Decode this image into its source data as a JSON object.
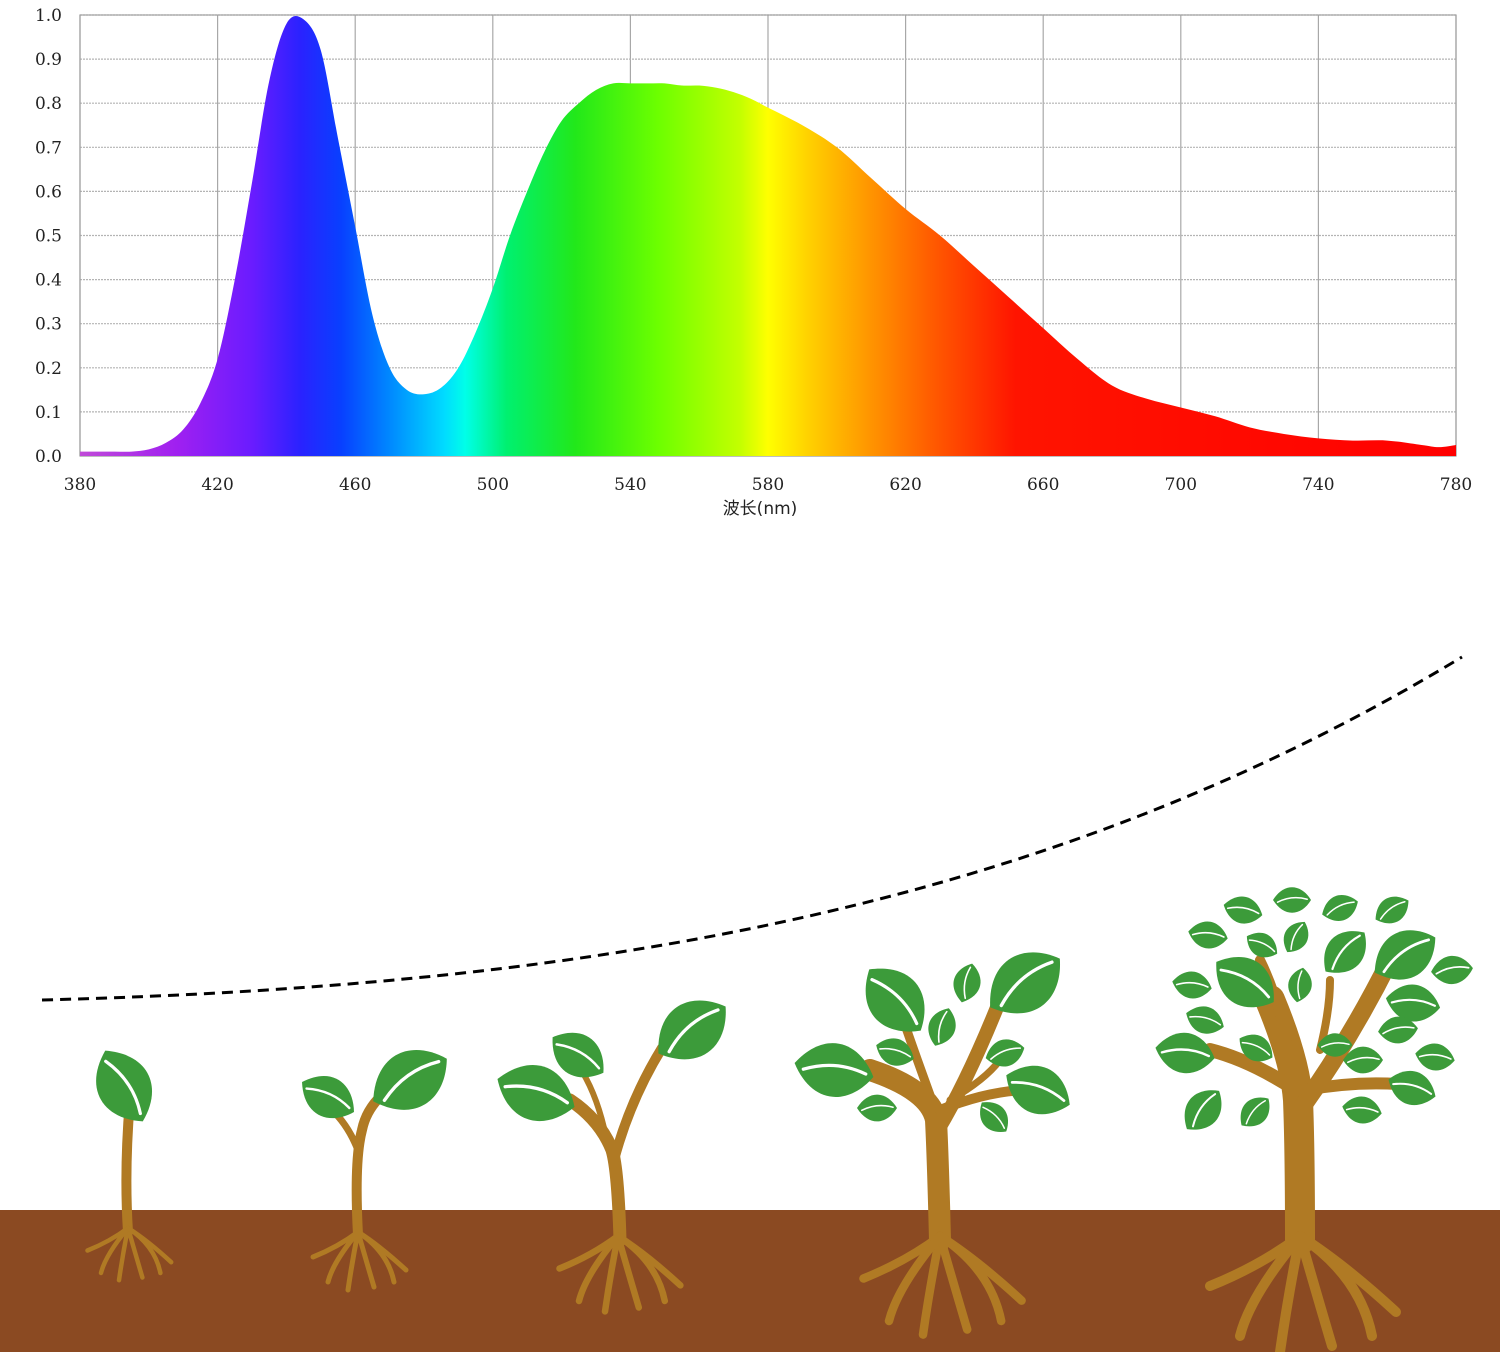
{
  "chart_data": {
    "type": "area",
    "title": "",
    "xlabel": "波长(nm)",
    "ylabel": "",
    "xlim": [
      380,
      780
    ],
    "ylim": [
      0,
      1.0
    ],
    "grid": true,
    "legend": "none",
    "x_ticks": [
      "380",
      "420",
      "460",
      "500",
      "540",
      "580",
      "620",
      "660",
      "700",
      "740",
      "780"
    ],
    "y_ticks": [
      "0.0",
      "0.1",
      "0.2",
      "0.3",
      "0.4",
      "0.5",
      "0.6",
      "0.7",
      "0.8",
      "0.9",
      "1.0"
    ],
    "fill": "visible spectrum gradient",
    "series": [
      {
        "x": [
          380,
          385,
          390,
          395,
          400,
          405,
          410,
          415,
          420,
          425,
          430,
          435,
          440,
          445,
          450,
          455,
          460,
          465,
          470,
          475,
          480,
          485,
          490,
          495,
          500,
          505,
          510,
          515,
          520,
          525,
          530,
          535,
          540,
          545,
          550,
          555,
          560,
          565,
          570,
          575,
          580,
          590,
          600,
          610,
          620,
          630,
          640,
          650,
          660,
          670,
          680,
          690,
          700,
          710,
          720,
          730,
          740,
          750,
          760,
          770,
          775,
          780
        ],
        "y": [
          0.01,
          0.01,
          0.01,
          0.01,
          0.015,
          0.03,
          0.06,
          0.12,
          0.22,
          0.4,
          0.62,
          0.85,
          0.98,
          0.99,
          0.92,
          0.72,
          0.52,
          0.32,
          0.2,
          0.15,
          0.14,
          0.155,
          0.2,
          0.28,
          0.38,
          0.5,
          0.6,
          0.69,
          0.76,
          0.8,
          0.83,
          0.845,
          0.845,
          0.845,
          0.845,
          0.84,
          0.84,
          0.835,
          0.825,
          0.81,
          0.79,
          0.75,
          0.7,
          0.63,
          0.56,
          0.5,
          0.43,
          0.36,
          0.29,
          0.22,
          0.16,
          0.13,
          0.11,
          0.09,
          0.065,
          0.05,
          0.04,
          0.035,
          0.035,
          0.025,
          0.02,
          0.025
        ]
      }
    ]
  },
  "illustration": {
    "soil_color": "#8b4a22",
    "trunk_color": "#b07a24",
    "leaf_color": "#3c9b3a",
    "leaf_vein_color": "#ffffff",
    "curve_style": "dashed",
    "plant_stages": 5
  }
}
